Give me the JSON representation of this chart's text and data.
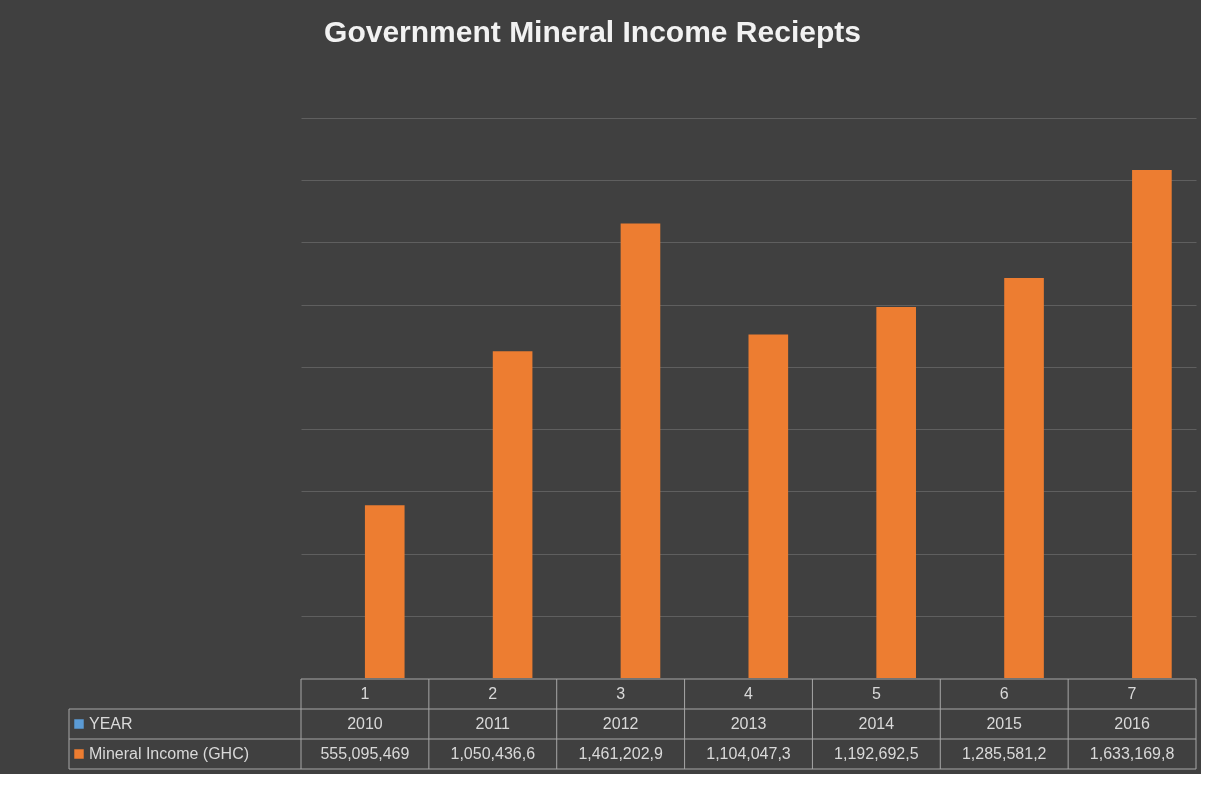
{
  "chart_data": {
    "type": "bar",
    "title": "Government Mineral Income Reciepts",
    "categories": [
      "1",
      "2",
      "3",
      "4",
      "5",
      "6",
      "7"
    ],
    "series": [
      {
        "name": "YEAR",
        "color": "#5b9bd5",
        "values": [
          2010,
          2011,
          2012,
          2013,
          2014,
          2015,
          2016
        ],
        "value_labels": [
          "2010",
          "2011",
          "2012",
          "2013",
          "2014",
          "2015",
          "2016"
        ]
      },
      {
        "name": "Mineral Income (GHC)",
        "color": "#ed7d31",
        "values": [
          555095469,
          1050436600,
          1461202900,
          1104047300,
          1192692500,
          1285581200,
          1633169800
        ],
        "value_labels": [
          "555,095,469",
          "1,050,436,6",
          "1,461,202,9",
          "1,104,047,3",
          "1,192,692,5",
          "1,285,581,2",
          "1,633,169,8"
        ]
      }
    ],
    "ylim": [
      0,
      1800000000
    ],
    "yticks": [
      {
        "value": 200000000,
        "label": null
      },
      {
        "value": 400000000,
        "label": null
      },
      {
        "value": 600000000,
        "label": null
      },
      {
        "value": 800000000,
        "label": null
      },
      {
        "value": 1000000000,
        "label": null
      },
      {
        "value": 1200000000,
        "label": null
      },
      {
        "value": 1400000000,
        "label": null
      },
      {
        "value": 1600000000,
        "label": null
      },
      {
        "value": 1800000000,
        "label": null
      }
    ],
    "grid": "y",
    "legend": "bottom",
    "tick_labels": "x"
  }
}
